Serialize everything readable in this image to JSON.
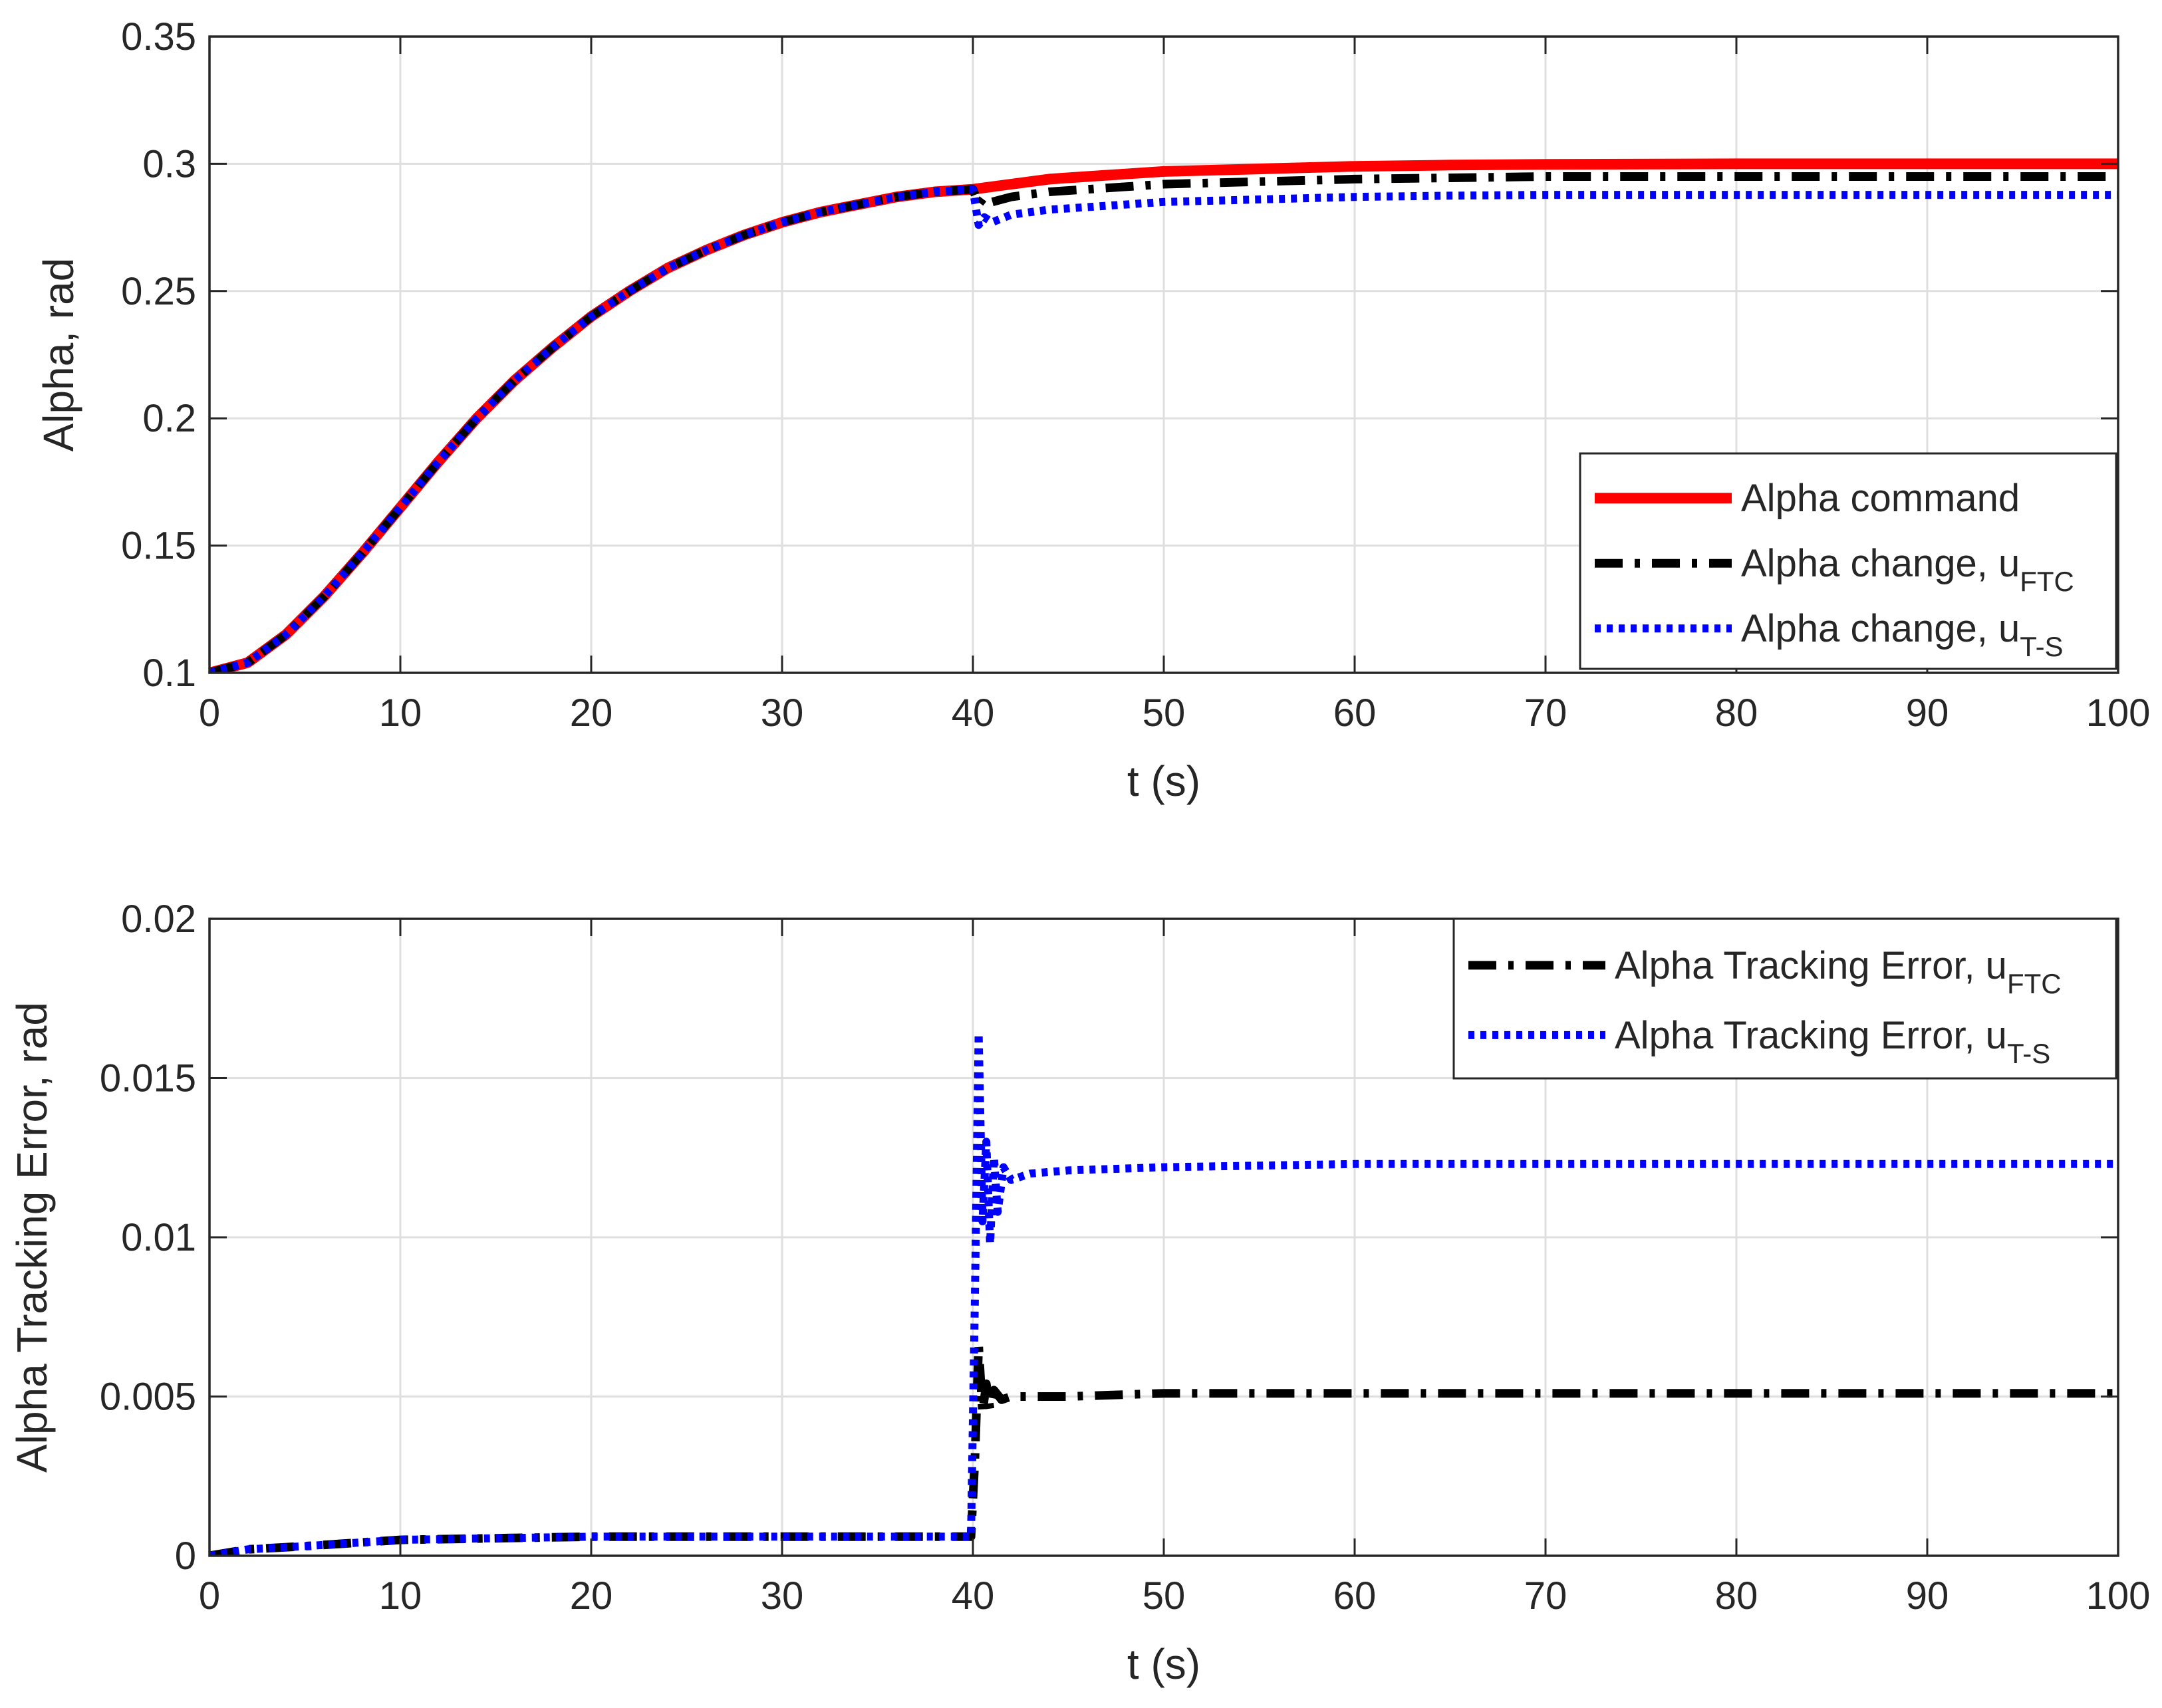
{
  "chart_data": [
    {
      "type": "line",
      "xlabel": "t (s)",
      "ylabel": "Alpha, rad",
      "xlim": [
        0,
        100
      ],
      "ylim": [
        0.1,
        0.35
      ],
      "xticks": [
        0,
        10,
        20,
        30,
        40,
        50,
        60,
        70,
        80,
        90,
        100
      ],
      "yticks": [
        0.1,
        0.15,
        0.2,
        0.25,
        0.3,
        0.35
      ],
      "xtick_labels": [
        "0",
        "10",
        "20",
        "30",
        "40",
        "50",
        "60",
        "70",
        "80",
        "90",
        "100"
      ],
      "ytick_labels": [
        "0.1",
        "0.15",
        "0.2",
        "0.25",
        "0.3",
        "0.35"
      ],
      "grid": true,
      "legend_position": "right-middle",
      "series": [
        {
          "name": "Alpha command",
          "label_main": "Alpha command",
          "label_sub": "",
          "color": "#ff0000",
          "style": "solid",
          "x": [
            0,
            2,
            4,
            6,
            8,
            10,
            12,
            14,
            16,
            18,
            20,
            22,
            24,
            26,
            28,
            30,
            32,
            34,
            36,
            38,
            40,
            42,
            44,
            46,
            48,
            50,
            55,
            60,
            65,
            70,
            80,
            90,
            100
          ],
          "y": [
            0.1,
            0.104,
            0.115,
            0.13,
            0.147,
            0.165,
            0.183,
            0.2,
            0.215,
            0.228,
            0.24,
            0.25,
            0.259,
            0.266,
            0.272,
            0.277,
            0.281,
            0.284,
            0.287,
            0.289,
            0.29,
            0.292,
            0.294,
            0.295,
            0.296,
            0.297,
            0.298,
            0.299,
            0.2995,
            0.2998,
            0.3,
            0.3,
            0.3
          ]
        },
        {
          "name": "Alpha change, u_FTC",
          "label_main": "Alpha change, u",
          "label_sub": "FTC",
          "color": "#000000",
          "style": "dashdot",
          "x": [
            0,
            2,
            4,
            6,
            8,
            10,
            12,
            14,
            16,
            18,
            20,
            22,
            24,
            26,
            28,
            30,
            32,
            34,
            36,
            38,
            40,
            40.3,
            40.6,
            41,
            42,
            44,
            46,
            48,
            50,
            55,
            60,
            65,
            70,
            80,
            90,
            100
          ],
          "y": [
            0.1,
            0.104,
            0.115,
            0.13,
            0.147,
            0.165,
            0.183,
            0.2,
            0.215,
            0.228,
            0.24,
            0.25,
            0.259,
            0.266,
            0.272,
            0.277,
            0.281,
            0.284,
            0.287,
            0.289,
            0.29,
            0.284,
            0.287,
            0.285,
            0.287,
            0.289,
            0.29,
            0.291,
            0.292,
            0.293,
            0.294,
            0.2945,
            0.295,
            0.295,
            0.295,
            0.295
          ]
        },
        {
          "name": "Alpha change, u_T-S",
          "label_main": "Alpha change, u",
          "label_sub": "T-S",
          "color": "#0000ff",
          "style": "dotted",
          "x": [
            0,
            2,
            4,
            6,
            8,
            10,
            12,
            14,
            16,
            18,
            20,
            22,
            24,
            26,
            28,
            30,
            32,
            34,
            36,
            38,
            40,
            40.3,
            40.6,
            41,
            42,
            44,
            46,
            48,
            50,
            55,
            60,
            65,
            70,
            80,
            90,
            100
          ],
          "y": [
            0.1,
            0.104,
            0.115,
            0.13,
            0.147,
            0.165,
            0.183,
            0.2,
            0.215,
            0.228,
            0.24,
            0.25,
            0.259,
            0.266,
            0.272,
            0.277,
            0.281,
            0.284,
            0.287,
            0.289,
            0.29,
            0.276,
            0.279,
            0.277,
            0.28,
            0.282,
            0.283,
            0.284,
            0.285,
            0.286,
            0.287,
            0.2875,
            0.2878,
            0.2878,
            0.2878,
            0.2878
          ]
        }
      ]
    },
    {
      "type": "line",
      "xlabel": "t (s)",
      "ylabel": "Alpha Tracking Error, rad",
      "xlim": [
        0,
        100
      ],
      "ylim": [
        0,
        0.02
      ],
      "xticks": [
        0,
        10,
        20,
        30,
        40,
        50,
        60,
        70,
        80,
        90,
        100
      ],
      "yticks": [
        0,
        0.005,
        0.01,
        0.015,
        0.02
      ],
      "xtick_labels": [
        "0",
        "10",
        "20",
        "30",
        "40",
        "50",
        "60",
        "70",
        "80",
        "90",
        "100"
      ],
      "ytick_labels": [
        "0",
        "0.005",
        "0.01",
        "0.015",
        "0.02"
      ],
      "grid": true,
      "legend_position": "top-right",
      "series": [
        {
          "name": "Alpha Tracking Error, u_FTC",
          "label_main": "Alpha Tracking Error, u",
          "label_sub": "FTC",
          "color": "#000000",
          "style": "dashdot",
          "x": [
            0,
            2,
            5,
            10,
            15,
            20,
            30,
            39.9,
            40.1,
            40.3,
            40.5,
            40.7,
            40.9,
            41.1,
            41.5,
            42,
            45,
            50,
            60,
            70,
            80,
            90,
            100
          ],
          "y": [
            0,
            0.0002,
            0.0003,
            0.0005,
            0.00055,
            0.0006,
            0.0006,
            0.0006,
            0.003,
            0.0066,
            0.0045,
            0.0054,
            0.0046,
            0.0052,
            0.0049,
            0.005,
            0.005,
            0.0051,
            0.0051,
            0.0051,
            0.0051,
            0.0051,
            0.0051
          ]
        },
        {
          "name": "Alpha Tracking Error, u_T-S",
          "label_main": "Alpha Tracking Error, u",
          "label_sub": "T-S",
          "color": "#0000ff",
          "style": "dotted",
          "x": [
            0,
            2,
            5,
            10,
            15,
            20,
            30,
            39.9,
            40.1,
            40.3,
            40.5,
            40.7,
            40.9,
            41.1,
            41.3,
            41.6,
            42,
            43,
            45,
            50,
            60,
            70,
            80,
            90,
            100
          ],
          "y": [
            0,
            0.0002,
            0.0003,
            0.0005,
            0.00055,
            0.0006,
            0.0006,
            0.0006,
            0.008,
            0.0164,
            0.0105,
            0.013,
            0.0098,
            0.0125,
            0.0108,
            0.0122,
            0.0118,
            0.012,
            0.0121,
            0.0122,
            0.0123,
            0.0123,
            0.0123,
            0.0123,
            0.0123
          ]
        }
      ]
    }
  ]
}
